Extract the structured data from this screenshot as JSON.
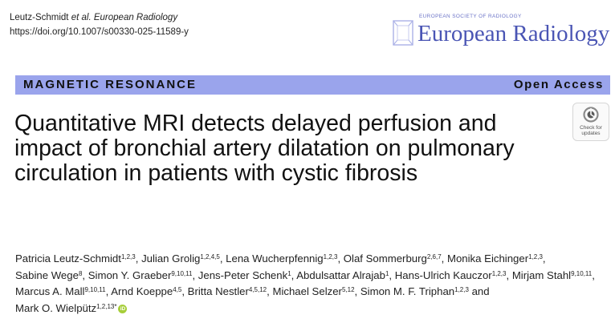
{
  "citation": {
    "authors_short": "Leutz-Schmidt",
    "etal": "et al.",
    "journal": "European Radiology",
    "doi": "https://doi.org/10.1007/s00330-025-11589-y"
  },
  "logo": {
    "society": "EUROPEAN SOCIETY OF RADIOLOGY",
    "name": "European Radiology"
  },
  "banner": {
    "section": "MAGNETIC RESONANCE",
    "access": "Open Access",
    "color": "#9aa4ec"
  },
  "check_updates": {
    "line1": "Check for",
    "line2": "updates"
  },
  "title": "Quantitative MRI detects delayed perfusion and impact of bronchial artery dilatation on pulmonary circulation in patients with cystic fibrosis",
  "authors": [
    {
      "name": "Patricia Leutz-Schmidt",
      "aff": "1,2,3"
    },
    {
      "name": "Julian Grolig",
      "aff": "1,2,4,5"
    },
    {
      "name": "Lena Wucherpfennig",
      "aff": "1,2,3"
    },
    {
      "name": "Olaf Sommerburg",
      "aff": "2,6,7"
    },
    {
      "name": "Monika Eichinger",
      "aff": "1,2,3"
    },
    {
      "name": "Sabine Wege",
      "aff": "8"
    },
    {
      "name": "Simon Y. Graeber",
      "aff": "9,10,11"
    },
    {
      "name": "Jens-Peter Schenk",
      "aff": "1"
    },
    {
      "name": "Abdulsattar Alrajab",
      "aff": "1"
    },
    {
      "name": "Hans-Ulrich Kauczor",
      "aff": "1,2,3"
    },
    {
      "name": "Mirjam Stahl",
      "aff": "9,10,11"
    },
    {
      "name": "Marcus A. Mall",
      "aff": "9,10,11"
    },
    {
      "name": "Arnd Koeppe",
      "aff": "4,5"
    },
    {
      "name": "Britta Nestler",
      "aff": "4,5,12"
    },
    {
      "name": "Michael Selzer",
      "aff": "5,12"
    },
    {
      "name": "Simon M. F. Triphan",
      "aff": "1,2,3"
    },
    {
      "name": "Mark O. Wielpütz",
      "aff": "1,2,13*"
    }
  ],
  "and_word": "and",
  "orcid_glyph": "iD"
}
